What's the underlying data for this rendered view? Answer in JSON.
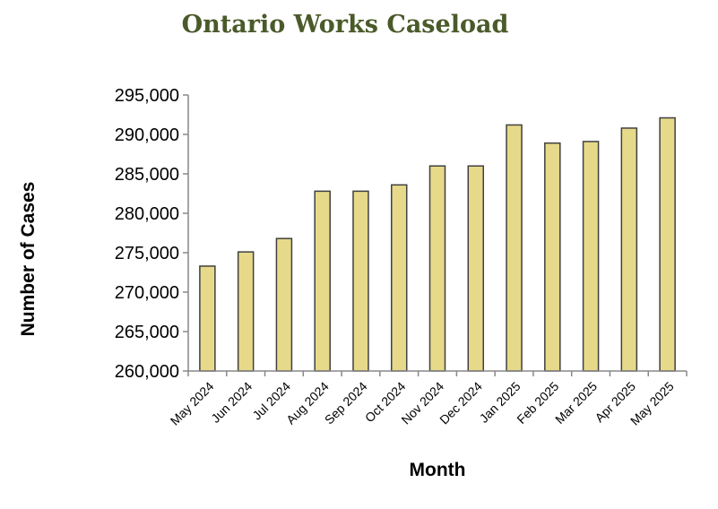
{
  "chart_data": {
    "type": "bar",
    "title": "Ontario Works Caseload",
    "xlabel": "Month",
    "ylabel": "Number of Cases",
    "ylim": [
      260000,
      295000
    ],
    "yticks": [
      260000,
      265000,
      270000,
      275000,
      280000,
      285000,
      290000,
      295000
    ],
    "ytick_labels": [
      "260,000",
      "265,000",
      "270,000",
      "275,000",
      "280,000",
      "285,000",
      "290,000",
      "295,000"
    ],
    "categories": [
      "May 2024",
      "Jun 2024",
      "Jul 2024",
      "Aug 2024",
      "Sep 2024",
      "Oct 2024",
      "Nov 2024",
      "Dec 2024",
      "Jan 2025",
      "Feb 2025",
      "Mar 2025",
      "Apr 2025",
      "May 2025"
    ],
    "values": [
      273300,
      275100,
      276800,
      282800,
      282800,
      283600,
      286000,
      286000,
      291200,
      288900,
      289100,
      290800,
      292100
    ],
    "bar_color": "#e6d98a",
    "bar_edge_color": "#404040",
    "grid": false,
    "legend": "none"
  }
}
